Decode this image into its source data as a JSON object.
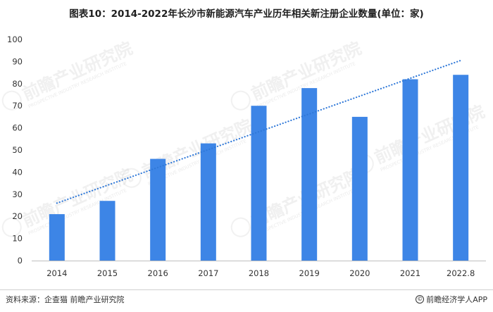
{
  "title": "图表10：2014-2022年长沙市新能源汽车产业历年相关新注册企业数量(单位：家)",
  "footer": {
    "source": "资料来源：企查猫 前瞻产业研究院",
    "brand": "前瞻经济学人APP",
    "copyright_symbol": "©"
  },
  "watermark": {
    "main": "前瞻产业研究院",
    "sub": "PROSPECTIVE INDUSTRY RESEARCH INSTITUTE"
  },
  "chart_data": {
    "type": "bar",
    "categories": [
      "2014",
      "2015",
      "2016",
      "2017",
      "2018",
      "2019",
      "2020",
      "2021",
      "2022.8"
    ],
    "values": [
      21,
      27,
      46,
      53,
      70,
      78,
      65,
      82,
      84
    ],
    "ylim": [
      0,
      100
    ],
    "yticks": [
      0,
      10,
      20,
      30,
      40,
      50,
      60,
      70,
      80,
      90,
      100
    ],
    "trendline": {
      "style": "dotted",
      "start": 26,
      "end": 90.5
    },
    "grid": false,
    "bar_color": "#3d85e6",
    "trend_color": "#2f78d8",
    "xlabel": "",
    "ylabel": ""
  }
}
